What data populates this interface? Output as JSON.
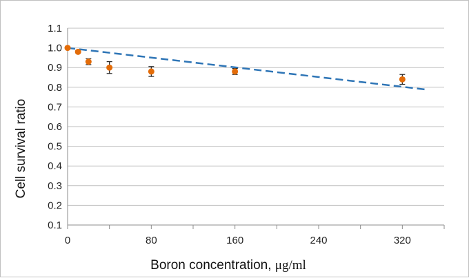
{
  "chart_data": {
    "type": "scatter",
    "xlabel_main": "Boron concentration, ",
    "xlabel_unit": "μg/ml",
    "ylabel": "Cell survival ratio",
    "xlim": [
      0,
      360
    ],
    "ylim": [
      0.1,
      1.1
    ],
    "x_ticks": [
      "0",
      "80",
      "160",
      "240",
      "320"
    ],
    "y_ticks": [
      "0.1",
      "0.2",
      "0.3",
      "0.4",
      "0.5",
      "0.6",
      "0.7",
      "0.8",
      "0.9",
      "1.0",
      "1.1"
    ],
    "grid": true,
    "points": [
      {
        "x": 0,
        "y": 1.0,
        "err": 0.0
      },
      {
        "x": 10,
        "y": 0.98,
        "err": 0.005
      },
      {
        "x": 20,
        "y": 0.93,
        "err": 0.015
      },
      {
        "x": 40,
        "y": 0.9,
        "err": 0.03
      },
      {
        "x": 80,
        "y": 0.88,
        "err": 0.025
      },
      {
        "x": 160,
        "y": 0.88,
        "err": 0.015
      },
      {
        "x": 320,
        "y": 0.84,
        "err": 0.025
      }
    ],
    "trendline": {
      "x": [
        0,
        345
      ],
      "y": [
        1.0,
        0.787
      ],
      "style": "dashed"
    },
    "colors": {
      "points": "#e36c09",
      "trendline": "#2e75b6",
      "grid": "#bfbfbf",
      "error_bars": "#222222"
    }
  }
}
